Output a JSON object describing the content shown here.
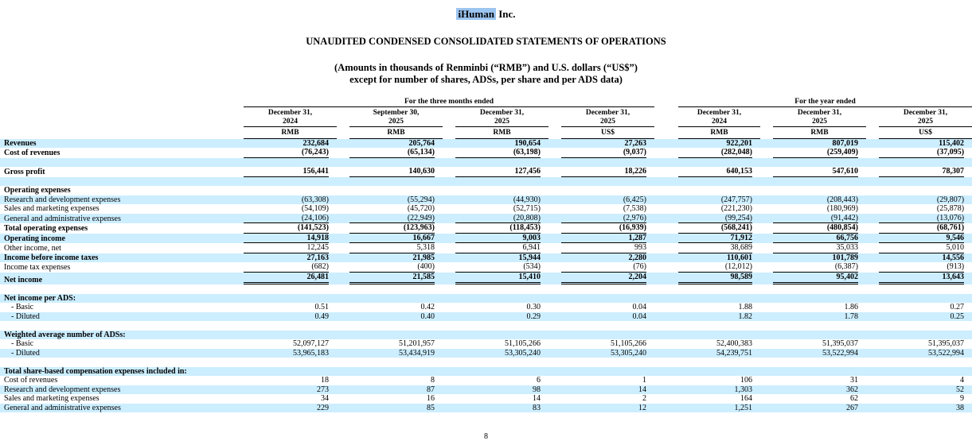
{
  "page": {
    "company_highlighted": "iHuman",
    "company_suffix": " Inc.",
    "title": "UNAUDITED CONDENSED CONSOLIDATED STATEMENTS OF OPERATIONS",
    "subtitle_line1": "(Amounts in thousands of Renminbi (“RMB”) and U.S. dollars (“US$”)",
    "subtitle_line2": "except for number of shares, ADSs, per share and per ADS data)",
    "page_number": "8",
    "stripe_color": "#cceeff",
    "highlight_color": "#9cc5f0"
  },
  "table": {
    "column_groups": [
      {
        "label": "For the three months ended",
        "span": 4
      },
      {
        "label": "For the year ended",
        "span": 3
      }
    ],
    "columns": [
      {
        "date": "December 31,",
        "year": "2024",
        "currency": "RMB"
      },
      {
        "date": "September 30,",
        "year": "2025",
        "currency": "RMB"
      },
      {
        "date": "December 31,",
        "year": "2025",
        "currency": "RMB"
      },
      {
        "date": "December 31,",
        "year": "2025",
        "currency": "US$"
      },
      {
        "date": "December 31,",
        "year": "2024",
        "currency": "RMB"
      },
      {
        "date": "December 31,",
        "year": "2025",
        "currency": "RMB"
      },
      {
        "date": "December 31,",
        "year": "2025",
        "currency": "US$"
      }
    ],
    "rows": [
      {
        "label": "Revenues",
        "bg": "blue",
        "bold": true,
        "values": [
          "232,684",
          "205,764",
          "190,654",
          "27,263",
          "922,201",
          "807,019",
          "115,402"
        ]
      },
      {
        "label": "Cost of revenues",
        "bg": "white",
        "bold": true,
        "underline": "single",
        "values": [
          "(76,243)",
          "(65,134)",
          "(63,198)",
          "(9,037)",
          "(282,048)",
          "(259,409)",
          "(37,095)"
        ]
      },
      {
        "label": "",
        "bg": "blue",
        "blank": true,
        "values": null
      },
      {
        "label": "Gross profit",
        "bg": "white",
        "bold": true,
        "underline": "single",
        "values": [
          "156,441",
          "140,630",
          "127,456",
          "18,226",
          "640,153",
          "547,610",
          "78,307"
        ]
      },
      {
        "label": "",
        "bg": "blue",
        "blank": true,
        "values": null
      },
      {
        "label": "Operating expenses",
        "bg": "white",
        "bold": true,
        "values": null
      },
      {
        "label": "Research and development expenses",
        "bg": "blue",
        "values": [
          "(63,308)",
          "(55,294)",
          "(44,930)",
          "(6,425)",
          "(247,757)",
          "(208,443)",
          "(29,807)"
        ]
      },
      {
        "label": "Sales and marketing expenses",
        "bg": "white",
        "values": [
          "(54,109)",
          "(45,720)",
          "(52,715)",
          "(7,538)",
          "(221,230)",
          "(180,969)",
          "(25,878)"
        ]
      },
      {
        "label": "General and administrative expenses",
        "bg": "blue",
        "underline": "single",
        "values": [
          "(24,106)",
          "(22,949)",
          "(20,808)",
          "(2,976)",
          "(99,254)",
          "(91,442)",
          "(13,076)"
        ]
      },
      {
        "label": "Total operating expenses",
        "bg": "white",
        "bold": true,
        "underline": "single",
        "values": [
          "(141,523)",
          "(123,963)",
          "(118,453)",
          "(16,939)",
          "(568,241)",
          "(480,854)",
          "(68,761)"
        ]
      },
      {
        "label": "Operating income",
        "bg": "blue",
        "bold": true,
        "underline": "single",
        "values": [
          "14,918",
          "16,667",
          "9,003",
          "1,287",
          "71,912",
          "66,756",
          "9,546"
        ]
      },
      {
        "label": "Other income, net",
        "bg": "white",
        "underline": "single",
        "values": [
          "12,245",
          "5,318",
          "6,941",
          "993",
          "38,689",
          "35,033",
          "5,010"
        ]
      },
      {
        "label": "Income before income taxes",
        "bg": "blue",
        "bold": true,
        "values": [
          "27,163",
          "21,985",
          "15,944",
          "2,280",
          "110,601",
          "101,789",
          "14,556"
        ]
      },
      {
        "label": "Income tax expenses",
        "bg": "white",
        "underline": "single",
        "values": [
          "(682)",
          "(400)",
          "(534)",
          "(76)",
          "(12,012)",
          "(6,387)",
          "(913)"
        ]
      },
      {
        "label": "Net income",
        "bg": "blue",
        "bold": true,
        "underline": "double",
        "values": [
          "26,481",
          "21,585",
          "15,410",
          "2,204",
          "98,589",
          "95,402",
          "13,643"
        ]
      },
      {
        "label": "",
        "bg": "white",
        "blank": true,
        "values": null
      },
      {
        "label": "Net income per ADS:",
        "bg": "blue",
        "bold": true,
        "values": null
      },
      {
        "label": "- Basic",
        "bg": "white",
        "indent": true,
        "values": [
          "0.51",
          "0.42",
          "0.30",
          "0.04",
          "1.88",
          "1.86",
          "0.27"
        ]
      },
      {
        "label": "- Diluted",
        "bg": "blue",
        "indent": true,
        "values": [
          "0.49",
          "0.40",
          "0.29",
          "0.04",
          "1.82",
          "1.78",
          "0.25"
        ]
      },
      {
        "label": "",
        "bg": "white",
        "blank": true,
        "values": null
      },
      {
        "label": "Weighted average number of ADSs:",
        "bg": "blue",
        "bold": true,
        "values": null
      },
      {
        "label": "- Basic",
        "bg": "white",
        "indent": true,
        "values": [
          "52,097,127",
          "51,201,957",
          "51,105,266",
          "51,105,266",
          "52,400,383",
          "51,395,037",
          "51,395,037"
        ]
      },
      {
        "label": "- Diluted",
        "bg": "blue",
        "indent": true,
        "values": [
          "53,965,183",
          "53,434,919",
          "53,305,240",
          "53,305,240",
          "54,239,751",
          "53,522,994",
          "53,522,994"
        ]
      },
      {
        "label": "",
        "bg": "white",
        "blank": true,
        "values": null
      },
      {
        "label": "Total share-based compensation expenses included in:",
        "bg": "blue",
        "bold": true,
        "values": null
      },
      {
        "label": "Cost of revenues",
        "bg": "white",
        "values": [
          "18",
          "8",
          "6",
          "1",
          "106",
          "31",
          "4"
        ]
      },
      {
        "label": "Research and development expenses",
        "bg": "blue",
        "values": [
          "273",
          "87",
          "98",
          "14",
          "1,303",
          "362",
          "52"
        ]
      },
      {
        "label": "Sales and marketing expenses",
        "bg": "white",
        "values": [
          "34",
          "16",
          "14",
          "2",
          "164",
          "62",
          "9"
        ]
      },
      {
        "label": "General and administrative expenses",
        "bg": "blue",
        "values": [
          "229",
          "85",
          "83",
          "12",
          "1,251",
          "267",
          "38"
        ]
      }
    ]
  }
}
